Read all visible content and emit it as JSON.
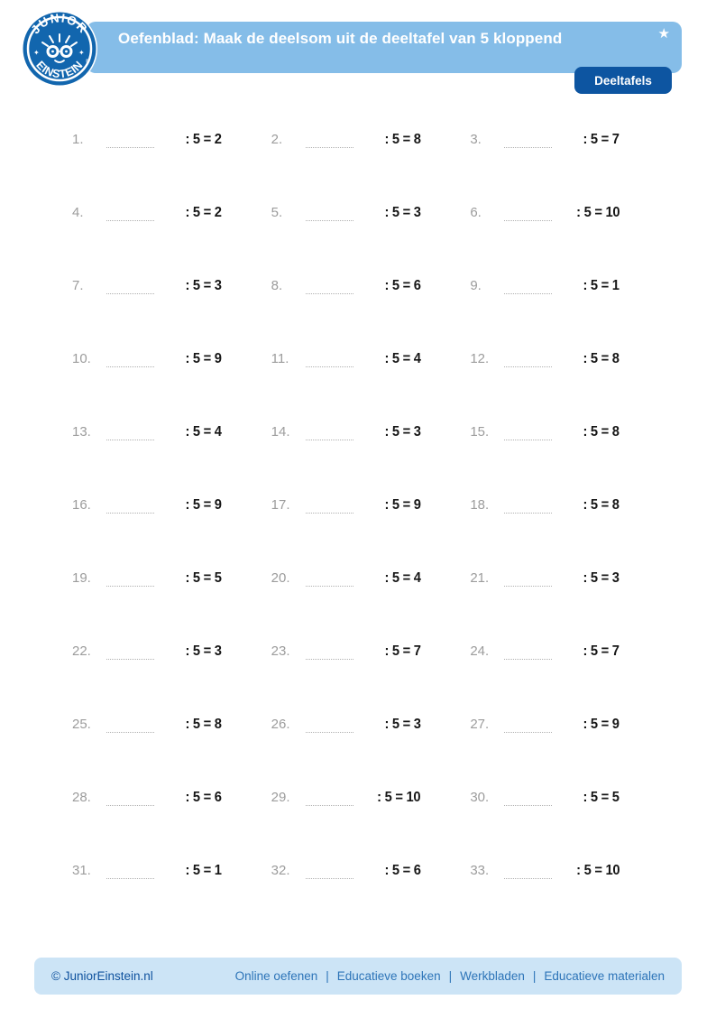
{
  "header": {
    "title": "Oefenblad: Maak de deelsom uit de deeltafel van 5 kloppend",
    "star_icon": "★",
    "category_button": "Deeltafels",
    "logo": {
      "arc_top": "JUNIOR",
      "arc_bottom": "EINSTEIN",
      "registered": "®"
    }
  },
  "colors": {
    "header_bar": "#85BDE8",
    "button": "#0D55A1",
    "footer_bar": "#CCE4F6",
    "logo_blue": "#1266AE",
    "link_blue": "#2D74B8",
    "copyright_blue": "#0F529E",
    "number_gray": "#9C9C9C",
    "equation_black": "#161616"
  },
  "problems": [
    {
      "label": "1.",
      "equation": ": 5 = 2"
    },
    {
      "label": "2.",
      "equation": ": 5 = 8"
    },
    {
      "label": "3.",
      "equation": ": 5 = 7"
    },
    {
      "label": "4.",
      "equation": ": 5 = 2"
    },
    {
      "label": "5.",
      "equation": ": 5 = 3"
    },
    {
      "label": "6.",
      "equation": ": 5 = 10"
    },
    {
      "label": "7.",
      "equation": ": 5 = 3"
    },
    {
      "label": "8.",
      "equation": ": 5 = 6"
    },
    {
      "label": "9.",
      "equation": ": 5 = 1"
    },
    {
      "label": "10.",
      "equation": ": 5 = 9"
    },
    {
      "label": "11.",
      "equation": ": 5 = 4"
    },
    {
      "label": "12.",
      "equation": ": 5 = 8"
    },
    {
      "label": "13.",
      "equation": ": 5 = 4"
    },
    {
      "label": "14.",
      "equation": ": 5 = 3"
    },
    {
      "label": "15.",
      "equation": ": 5 = 8"
    },
    {
      "label": "16.",
      "equation": ": 5 = 9"
    },
    {
      "label": "17.",
      "equation": ": 5 = 9"
    },
    {
      "label": "18.",
      "equation": ": 5 = 8"
    },
    {
      "label": "19.",
      "equation": ": 5 = 5"
    },
    {
      "label": "20.",
      "equation": ": 5 = 4"
    },
    {
      "label": "21.",
      "equation": ": 5 = 3"
    },
    {
      "label": "22.",
      "equation": ": 5 = 3"
    },
    {
      "label": "23.",
      "equation": ": 5 = 7"
    },
    {
      "label": "24.",
      "equation": ": 5 = 7"
    },
    {
      "label": "25.",
      "equation": ": 5 = 8"
    },
    {
      "label": "26.",
      "equation": ": 5 = 3"
    },
    {
      "label": "27.",
      "equation": ": 5 = 9"
    },
    {
      "label": "28.",
      "equation": ": 5 = 6"
    },
    {
      "label": "29.",
      "equation": ": 5 = 10"
    },
    {
      "label": "30.",
      "equation": ": 5 = 5"
    },
    {
      "label": "31.",
      "equation": ": 5 = 1"
    },
    {
      "label": "32.",
      "equation": ": 5 = 6"
    },
    {
      "label": "33.",
      "equation": ": 5 = 10"
    }
  ],
  "footer": {
    "copyright": "© JuniorEinstein.nl",
    "separator": "|",
    "links": [
      "Online oefenen",
      "Educatieve boeken",
      "Werkbladen",
      "Educatieve materialen"
    ]
  }
}
